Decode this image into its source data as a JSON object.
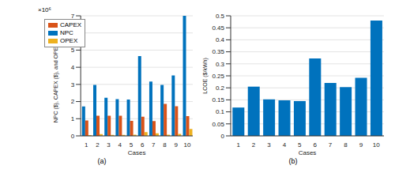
{
  "chart_data": [
    {
      "type": "bar",
      "title": "(a)",
      "x_label": "Cases",
      "y_label": "NPC ($), CAPEX ($), and OPEX ($/yr)",
      "annotation": "×10⁶",
      "categories": [
        "1",
        "2",
        "3",
        "4",
        "5",
        "6",
        "7",
        "8",
        "9",
        "10"
      ],
      "series": [
        {
          "name": "NPC",
          "color": "#0072BD",
          "values": [
            1.72,
            2.97,
            2.22,
            2.14,
            2.12,
            4.65,
            3.17,
            2.97,
            3.52,
            7.0
          ]
        },
        {
          "name": "CAPEX",
          "color": "#D95319",
          "values": [
            0.9,
            1.18,
            1.18,
            1.17,
            0.87,
            1.12,
            0.86,
            1.86,
            1.73,
            1.15
          ]
        },
        {
          "name": "OPEX",
          "color": "#EDB120",
          "values": [
            0.05,
            0.1,
            0.06,
            0.06,
            0.07,
            0.22,
            0.15,
            0.07,
            0.11,
            0.4
          ]
        }
      ],
      "ylim": [
        0,
        7
      ],
      "yticks": [
        0,
        1,
        2,
        3,
        4,
        5,
        6,
        7
      ],
      "grid": true,
      "legend": "upper left"
    },
    {
      "type": "bar",
      "title": "(b)",
      "x_label": "Cases",
      "y_label": "LCOE ($/kWh)",
      "categories": [
        "1",
        "2",
        "3",
        "4",
        "5",
        "6",
        "7",
        "8",
        "9",
        "10"
      ],
      "values": [
        0.118,
        0.205,
        0.152,
        0.148,
        0.145,
        0.322,
        0.22,
        0.203,
        0.242,
        0.48
      ],
      "color": "#0072BD",
      "ylim": [
        0,
        0.5
      ],
      "yticks": [
        0,
        0.05,
        0.1,
        0.15,
        0.2,
        0.25,
        0.3,
        0.35,
        0.4,
        0.45,
        0.5
      ],
      "grid": true
    }
  ]
}
